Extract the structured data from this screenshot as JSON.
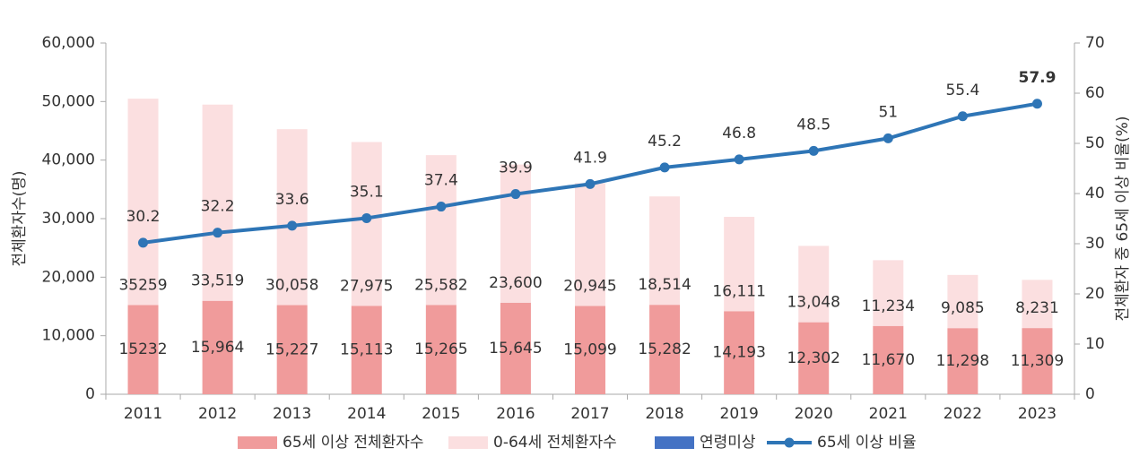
{
  "chart_data": {
    "type": "bar+line",
    "y_axis_label": "전체환자수(명)",
    "y2_axis_label": "전체환자 중 65세 이상 비율(%)",
    "categories": [
      "2011",
      "2012",
      "2013",
      "2014",
      "2015",
      "2016",
      "2017",
      "2018",
      "2019",
      "2020",
      "2021",
      "2022",
      "2023"
    ],
    "series": [
      {
        "name": "65세 이상 전체환자수",
        "type": "bar",
        "color": "#f09b9b",
        "values": [
          15232,
          15964,
          15227,
          15113,
          15265,
          15645,
          15099,
          15282,
          14193,
          12302,
          11670,
          11298,
          11309
        ],
        "value_labels": [
          "15232",
          "15,964",
          "15,227",
          "15,113",
          "15,265",
          "15,645",
          "15,099",
          "15,282",
          "14,193",
          "12,302",
          "11,670",
          "11,298",
          "11,309"
        ]
      },
      {
        "name": "0-64세 전체환자수",
        "type": "bar",
        "color": "#fbdfe0",
        "values": [
          35259,
          33519,
          30058,
          27975,
          25582,
          23600,
          20945,
          18514,
          16111,
          13048,
          11234,
          9085,
          8231
        ],
        "value_labels": [
          "35259",
          "33,519",
          "30,058",
          "27,975",
          "25,582",
          "23,600",
          "20,945",
          "18,514",
          "16,111",
          "13,048",
          "11,234",
          "9,085",
          "8,231"
        ]
      },
      {
        "name": "연령미상",
        "type": "bar",
        "color": "#4472c4",
        "values": [
          0,
          0,
          0,
          0,
          0,
          0,
          0,
          0,
          0,
          0,
          0,
          0,
          0
        ]
      },
      {
        "name": "65세 이상 비율",
        "type": "line",
        "axis": "y2",
        "color": "#2e75b6",
        "values": [
          30.2,
          32.2,
          33.6,
          35.1,
          37.4,
          39.9,
          41.9,
          45.2,
          46.8,
          48.5,
          51,
          55.4,
          57.9
        ]
      }
    ],
    "ylim": [
      0,
      60000
    ],
    "yticks": [
      0,
      {
        "value": 10000,
        "label": "10,000"
      },
      {
        "value": 20000,
        "label": "20,000"
      },
      {
        "value": 30000,
        "label": "30,000"
      },
      {
        "value": 40000,
        "label": "40,000"
      },
      {
        "value": 50000,
        "label": "50,000"
      },
      {
        "value": 60000,
        "label": "60,000"
      }
    ],
    "y2lim": [
      0,
      70
    ],
    "y2ticks": [
      0,
      10,
      20,
      30,
      40,
      50,
      60,
      70
    ],
    "legend": "bottom"
  }
}
